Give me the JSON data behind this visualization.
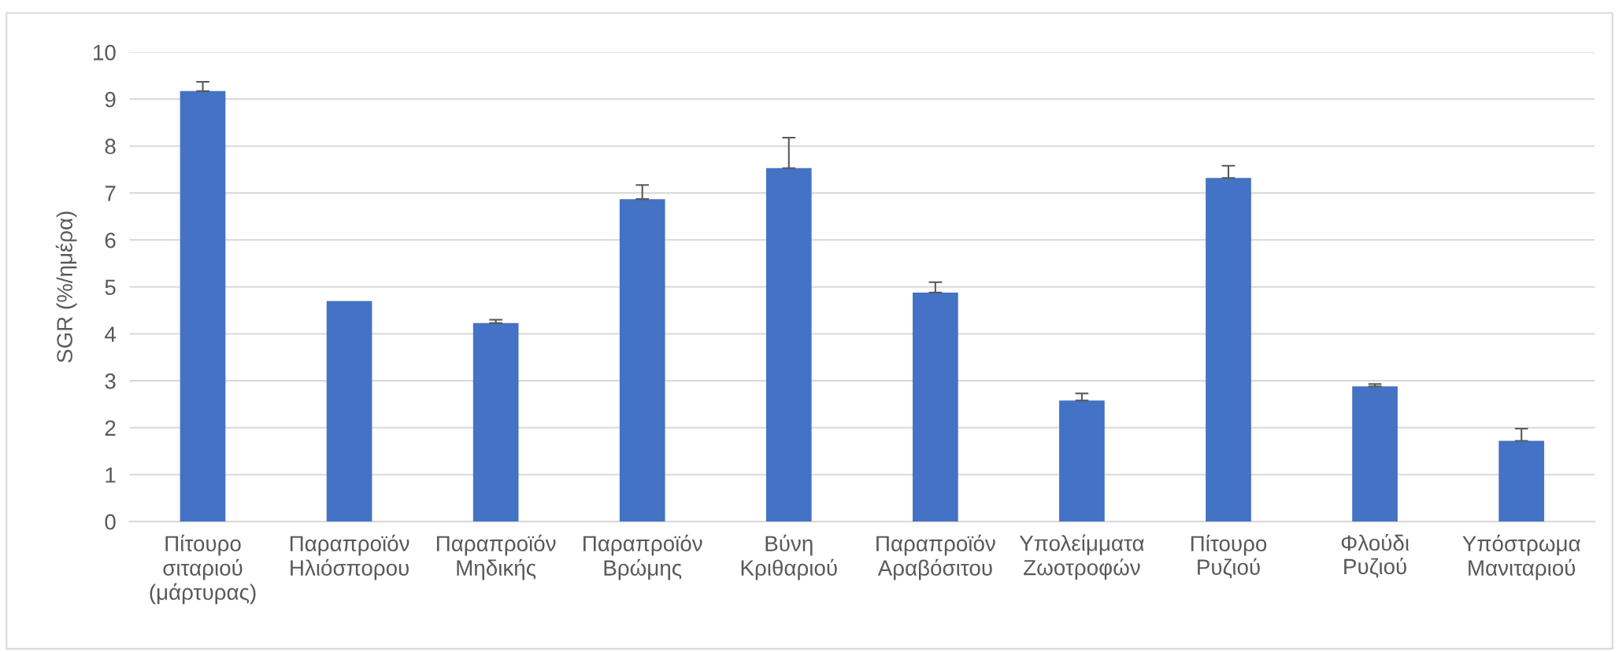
{
  "chart_data": {
    "type": "bar",
    "ylabel": "SGR (%/ημέρα)",
    "categories": [
      "Πίτουρο\nσιταριού\n(μάρτυρας)",
      "Παραπροϊόν\nΗλιόσπορου",
      "Παραπροϊόν\nΜηδικής",
      "Παραπροϊόν\nΒρώμης",
      "Βύνη\nΚριθαριού",
      "Παραπροϊόν\nΑραβόσιτου",
      "Υπολείμματα\nΖωοτροφών",
      "Πίτουρο\nΡυζιού",
      "Φλούδι\nΡυζιού",
      "Υπόστρωμα\nΜανιταριού"
    ],
    "values": [
      9.17,
      4.7,
      4.23,
      6.87,
      7.53,
      4.88,
      2.58,
      7.32,
      2.88,
      1.72
    ],
    "errors": [
      [
        9.17,
        9.37
      ],
      null,
      [
        4.23,
        4.3
      ],
      [
        6.87,
        7.17
      ],
      [
        7.53,
        8.18
      ],
      [
        4.88,
        5.1
      ],
      [
        2.58,
        2.73
      ],
      [
        7.32,
        7.58
      ],
      [
        2.88,
        2.93
      ],
      [
        1.72,
        1.98
      ]
    ],
    "color": "#4472c4",
    "ylim": [
      0,
      10
    ],
    "yticks": [
      0,
      1,
      2,
      3,
      4,
      5,
      6,
      7,
      8,
      9,
      10
    ],
    "grid": "y"
  }
}
